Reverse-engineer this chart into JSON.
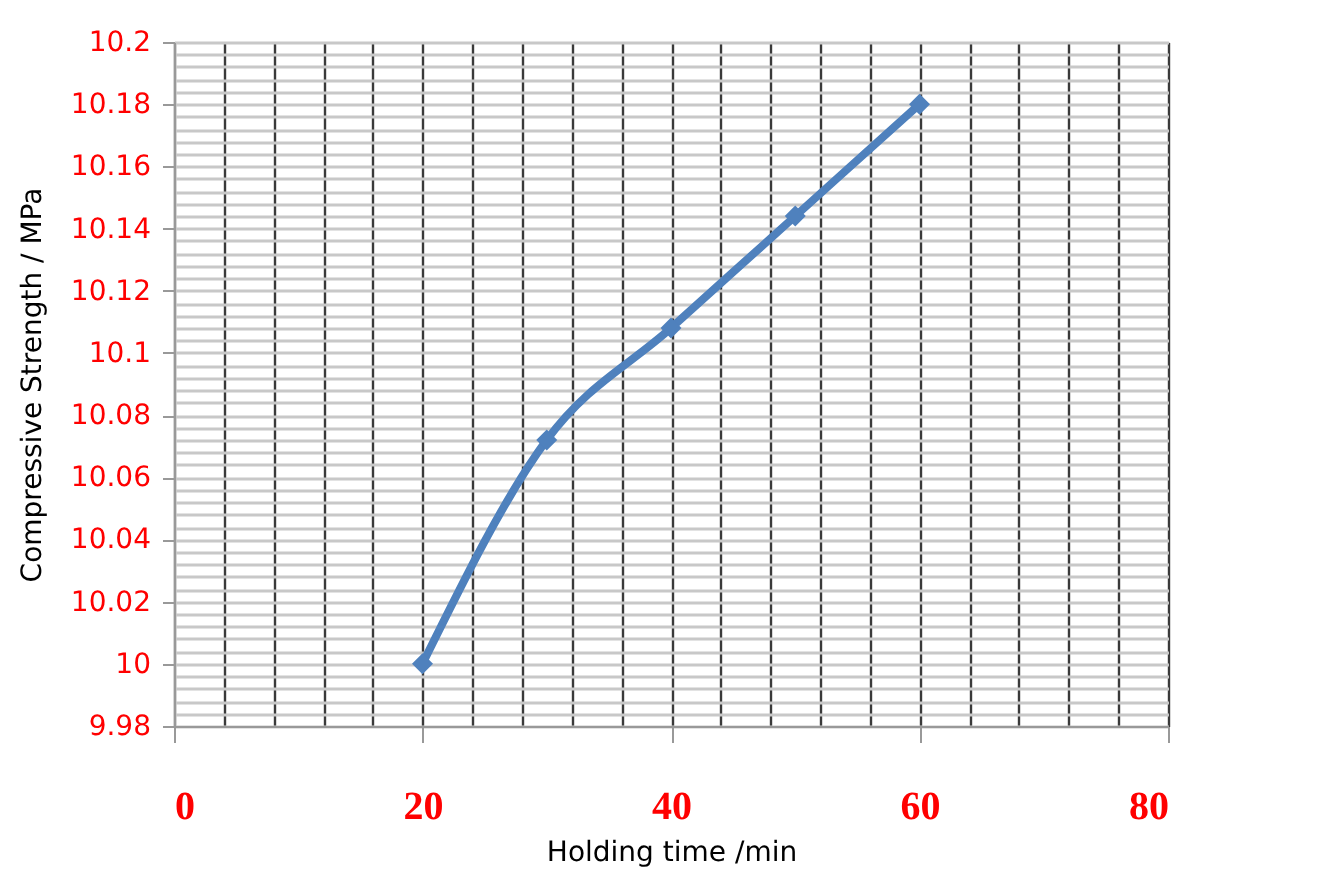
{
  "chart_data": {
    "type": "line",
    "xlabel": "Holding time /min",
    "ylabel": "Compressive Strength / MPa",
    "x": [
      20,
      30,
      40,
      50,
      60
    ],
    "series": [
      {
        "color": "#4f81bd",
        "values": [
          10,
          10.072,
          10.108,
          10.144,
          10.18
        ]
      }
    ],
    "xlim": [
      0,
      80
    ],
    "xticks": [
      0,
      {
        "value": 4,
        "label": null
      },
      {
        "value": 8,
        "label": null
      },
      {
        "value": 12,
        "label": null
      },
      {
        "value": 16,
        "label": null
      },
      20,
      {
        "value": 24,
        "label": null
      },
      {
        "value": 28,
        "label": null
      },
      {
        "value": 32,
        "label": null
      },
      {
        "value": 36,
        "label": null
      },
      40,
      {
        "value": 44,
        "label": null
      },
      {
        "value": 48,
        "label": null
      },
      {
        "value": 52,
        "label": null
      },
      {
        "value": 56,
        "label": null
      },
      60,
      {
        "value": 64,
        "label": null
      },
      {
        "value": 68,
        "label": null
      },
      {
        "value": 72,
        "label": null
      },
      {
        "value": 76,
        "label": null
      },
      80
    ],
    "ylim": [
      9.98,
      10.2
    ],
    "yticks": [
      9.98,
      {
        "value": 9.984,
        "label": null
      },
      {
        "value": 9.988,
        "label": null
      },
      {
        "value": 9.992,
        "label": null
      },
      {
        "value": 9.996,
        "label": null
      },
      10,
      {
        "value": 10.004,
        "label": null
      },
      {
        "value": 10.008,
        "label": null
      },
      {
        "value": 10.012,
        "label": null
      },
      {
        "value": 10.016,
        "label": null
      },
      10.02,
      {
        "value": 10.024,
        "label": null
      },
      {
        "value": 10.028,
        "label": null
      },
      {
        "value": 10.032,
        "label": null
      },
      {
        "value": 10.036,
        "label": null
      },
      10.04,
      {
        "value": 10.044,
        "label": null
      },
      {
        "value": 10.048,
        "label": null
      },
      {
        "value": 10.052,
        "label": null
      },
      {
        "value": 10.056,
        "label": null
      },
      10.06,
      {
        "value": 10.064,
        "label": null
      },
      {
        "value": 10.068,
        "label": null
      },
      {
        "value": 10.072,
        "label": null
      },
      {
        "value": 10.076,
        "label": null
      },
      10.08,
      {
        "value": 10.084,
        "label": null
      },
      {
        "value": 10.088,
        "label": null
      },
      {
        "value": 10.092,
        "label": null
      },
      {
        "value": 10.096,
        "label": null
      },
      10.1,
      {
        "value": 10.104,
        "label": null
      },
      {
        "value": 10.108,
        "label": null
      },
      {
        "value": 10.112,
        "label": null
      },
      {
        "value": 10.116,
        "label": null
      },
      10.12,
      {
        "value": 10.124,
        "label": null
      },
      {
        "value": 10.128,
        "label": null
      },
      {
        "value": 10.132,
        "label": null
      },
      {
        "value": 10.136,
        "label": null
      },
      10.14,
      {
        "value": 10.144,
        "label": null
      },
      {
        "value": 10.148,
        "label": null
      },
      {
        "value": 10.152,
        "label": null
      },
      {
        "value": 10.156,
        "label": null
      },
      10.16,
      {
        "value": 10.164,
        "label": null
      },
      {
        "value": 10.168,
        "label": null
      },
      {
        "value": 10.172,
        "label": null
      },
      {
        "value": 10.176,
        "label": null
      },
      10.18,
      {
        "value": 10.184,
        "label": null
      },
      {
        "value": 10.188,
        "label": null
      },
      {
        "value": 10.192,
        "label": null
      },
      {
        "value": 10.196,
        "label": null
      },
      10.2
    ],
    "grid": true,
    "marker": "diamond",
    "line_style": "solid"
  }
}
